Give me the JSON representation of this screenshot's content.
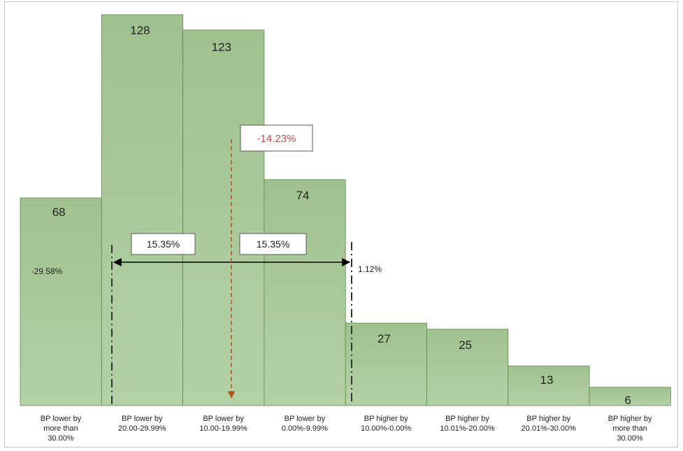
{
  "chart_data": {
    "type": "bar",
    "title": "",
    "xlabel": "",
    "ylabel": "",
    "ylim": [
      0,
      130
    ],
    "grid": false,
    "legend": "none",
    "categories": [
      [
        "BP lower by",
        "more than",
        "30.00%"
      ],
      [
        "BP lower by",
        "20.00-29.99%"
      ],
      [
        "BP lower by",
        "10.00-19.99%"
      ],
      [
        "BP lower by",
        "0.00%-9.99%"
      ],
      [
        "BP higher by",
        "10.00%-0.00%"
      ],
      [
        "BP higher by",
        "10.01%-20.00%"
      ],
      [
        "BP higher by",
        "20.01%-30.00%"
      ],
      [
        "BP higher by",
        "more than",
        "30.00%"
      ]
    ],
    "values": [
      68,
      128,
      123,
      74,
      27,
      25,
      13,
      6
    ],
    "colors": {
      "bar_fill": "#a9c79a",
      "bar_edge": "#5d8a4c",
      "annotation_text": "#c0504d",
      "annotation_arrow": "#b3541e"
    },
    "annotations": {
      "left_value": "-29.58%",
      "right_value": "1.12%",
      "mean_label": "-14.23%",
      "span_left": "15.35%",
      "span_right": "15.35%"
    }
  }
}
